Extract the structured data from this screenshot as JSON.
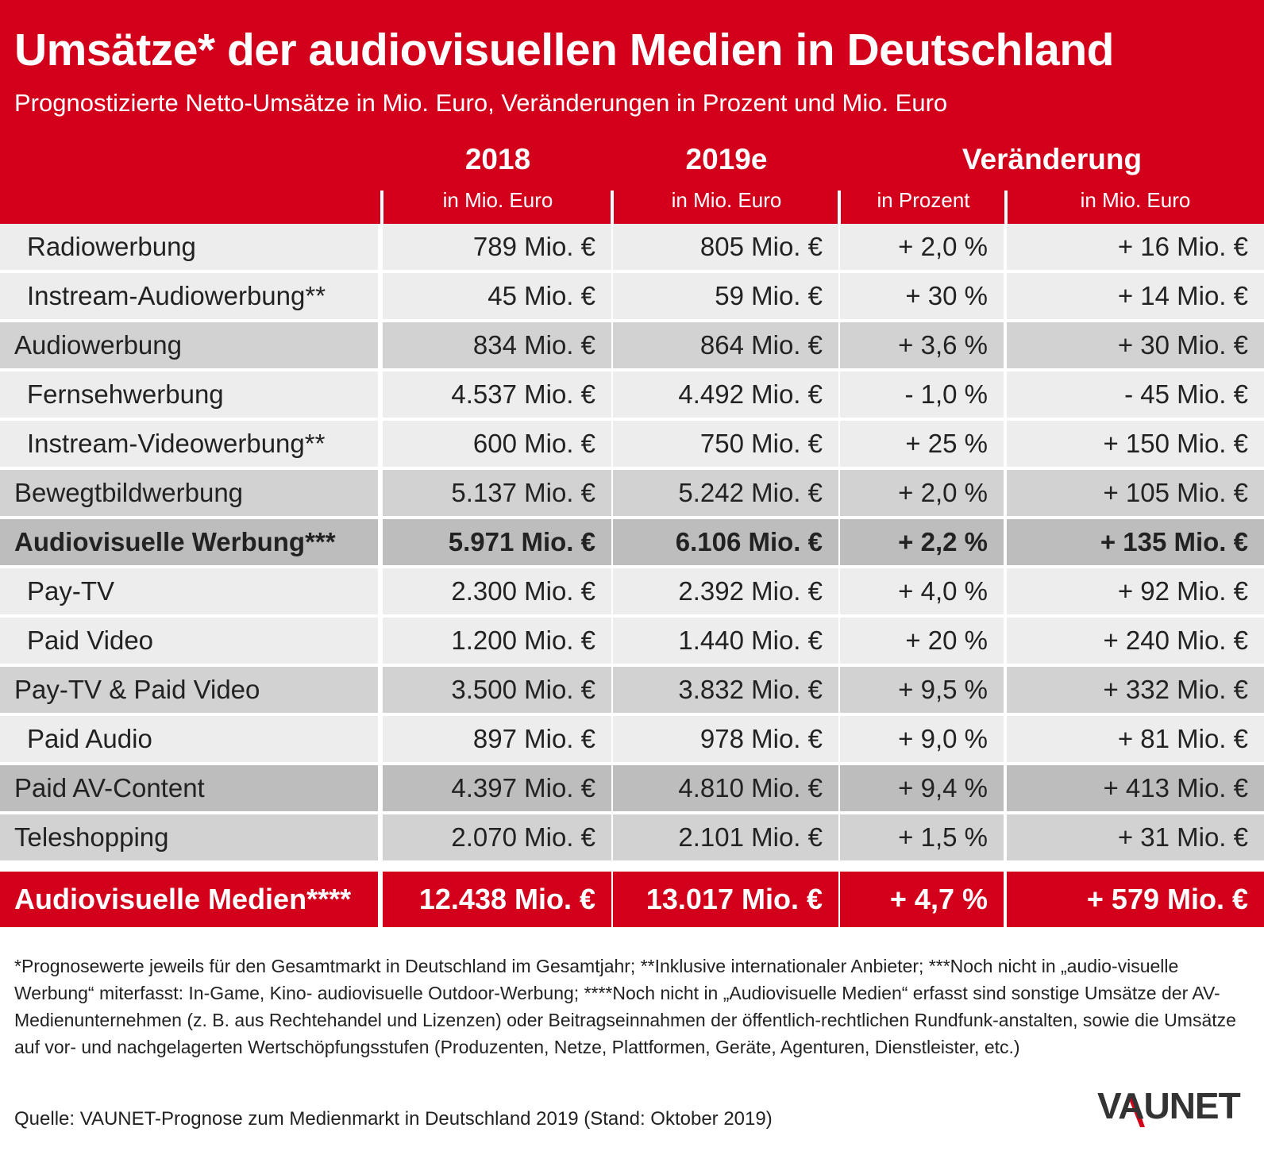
{
  "title": "Umsätze* der audiovisuellen Medien in Deutschland",
  "subtitle": "Prognostizierte Netto-Umsätze in Mio. Euro, Veränderungen in Prozent und Mio. Euro",
  "headers": {
    "col_2018": "2018",
    "col_2019": "2019e",
    "col_change": "Veränderung",
    "unit_2018": "in Mio. Euro",
    "unit_2019": "in Mio. Euro",
    "unit_pct": "in Prozent",
    "unit_abs": "in Mio. Euro"
  },
  "rows": [
    {
      "label": "Radiowerbung",
      "v2018": "789 Mio. €",
      "v2019": "805 Mio. €",
      "pct": "+ 2,0 %",
      "abs": "+ 16 Mio. €",
      "style": "sub"
    },
    {
      "label": "Instream-Audiowerbung**",
      "v2018": "45 Mio. €",
      "v2019": "59 Mio. €",
      "pct": "+ 30 %",
      "abs": "+ 14 Mio. €",
      "style": "sub"
    },
    {
      "label": "Audiowerbung",
      "v2018": "834 Mio. €",
      "v2019": "864 Mio. €",
      "pct": "+ 3,6 %",
      "abs": "+ 30 Mio. €",
      "style": "group"
    },
    {
      "label": "Fernsehwerbung",
      "v2018": "4.537 Mio. €",
      "v2019": "4.492 Mio. €",
      "pct": "- 1,0 %",
      "abs": "- 45 Mio. €",
      "style": "sub"
    },
    {
      "label": "Instream-Videowerbung**",
      "v2018": "600 Mio. €",
      "v2019": "750 Mio. €",
      "pct": "+ 25 %",
      "abs": "+ 150 Mio. €",
      "style": "sub"
    },
    {
      "label": "Bewegtbildwerbung",
      "v2018": "5.137 Mio. €",
      "v2019": "5.242 Mio. €",
      "pct": "+ 2,0 %",
      "abs": "+ 105 Mio. €",
      "style": "group"
    },
    {
      "label": "Audiovisuelle Werbung***",
      "v2018": "5.971 Mio. €",
      "v2019": "6.106 Mio. €",
      "pct": "+ 2,2 %",
      "abs": "+ 135 Mio. €",
      "style": "group2 bold"
    },
    {
      "label": "Pay-TV",
      "v2018": "2.300 Mio. €",
      "v2019": "2.392 Mio. €",
      "pct": "+ 4,0 %",
      "abs": "+ 92 Mio. €",
      "style": "sub"
    },
    {
      "label": "Paid Video",
      "v2018": "1.200 Mio. €",
      "v2019": "1.440 Mio. €",
      "pct": "+ 20 %",
      "abs": "+ 240 Mio. €",
      "style": "sub"
    },
    {
      "label": "Pay-TV & Paid Video",
      "v2018": "3.500 Mio. €",
      "v2019": "3.832 Mio. €",
      "pct": "+ 9,5 %",
      "abs": "+ 332 Mio. €",
      "style": "group"
    },
    {
      "label": "Paid Audio",
      "v2018": "897 Mio. €",
      "v2019": "978 Mio. €",
      "pct": "+ 9,0 %",
      "abs": "+ 81 Mio. €",
      "style": "sub"
    },
    {
      "label": "Paid AV-Content",
      "v2018": "4.397 Mio. €",
      "v2019": "4.810 Mio. €",
      "pct": "+ 9,4 %",
      "abs": "+ 413 Mio. €",
      "style": "group2"
    },
    {
      "label": "Teleshopping",
      "v2018": "2.070 Mio. €",
      "v2019": "2.101 Mio. €",
      "pct": "+ 1,5 %",
      "abs": "+ 31 Mio. €",
      "style": "group"
    },
    {
      "label": "Audiovisuelle Medien****",
      "v2018": "12.438 Mio. €",
      "v2019": "13.017 Mio. €",
      "pct": "+ 4,7 %",
      "abs": "+ 579 Mio. €",
      "style": "total"
    }
  ],
  "footnote": "*Prognosewerte jeweils für den Gesamtmarkt in Deutschland im Gesamtjahr; **Inklusive internationaler Anbieter; ***Noch nicht in „audio-visuelle Werbung“ miterfasst: In-Game, Kino- audiovisuelle Outdoor-Werbung; ****Noch nicht in „Audiovisuelle Medien“ erfasst sind sonstige Umsätze der AV-Medienunternehmen (z. B. aus Rechtehandel und Lizenzen) oder Beitragseinnahmen der öffentlich-rechtlichen Rundfunk-anstalten, sowie die Umsätze auf vor- und nachgelagerten Wertschöpfungsstufen (Produzenten, Netze, Plattformen, Geräte, Agenturen, Dienstleister, etc.)",
  "source": "Quelle: VAUNET-Prognose zum Medienmarkt in Deutschland 2019 (Stand: Oktober 2019)",
  "logo_text": "VAUNET",
  "colors": {
    "brand_red": "#d3001b",
    "sub_row": "#ededed",
    "group_row": "#d2d2d2",
    "group_row_dark": "#bdbdbd"
  },
  "chart_data": {
    "type": "table",
    "title": "Umsätze* der audiovisuellen Medien in Deutschland",
    "subtitle": "Prognostizierte Netto-Umsätze in Mio. Euro, Veränderungen in Prozent und Mio. Euro",
    "columns": [
      "2018",
      "2019e",
      "Veränderung in Prozent",
      "Veränderung in Mio. Euro"
    ],
    "categories": [
      "Radiowerbung",
      "Instream-Audiowerbung**",
      "Audiowerbung",
      "Fernsehwerbung",
      "Instream-Videowerbung**",
      "Bewegtbildwerbung",
      "Audiovisuelle Werbung***",
      "Pay-TV",
      "Paid Video",
      "Pay-TV & Paid Video",
      "Paid Audio",
      "Paid AV-Content",
      "Teleshopping",
      "Audiovisuelle Medien****"
    ],
    "series": [
      {
        "name": "2018",
        "values": [
          789,
          45,
          834,
          4537,
          600,
          5137,
          5971,
          2300,
          1200,
          3500,
          897,
          4397,
          2070,
          12438
        ]
      },
      {
        "name": "2019e",
        "values": [
          805,
          59,
          864,
          4492,
          750,
          5242,
          6106,
          2392,
          1440,
          3832,
          978,
          4810,
          2101,
          13017
        ]
      },
      {
        "name": "in Prozent",
        "values": [
          2.0,
          30,
          3.6,
          -1.0,
          25,
          2.0,
          2.2,
          4.0,
          20,
          9.5,
          9.0,
          9.4,
          1.5,
          4.7
        ]
      },
      {
        "name": "in Mio. Euro",
        "values": [
          16,
          14,
          30,
          -45,
          150,
          105,
          135,
          92,
          240,
          332,
          81,
          413,
          31,
          579
        ]
      }
    ]
  }
}
